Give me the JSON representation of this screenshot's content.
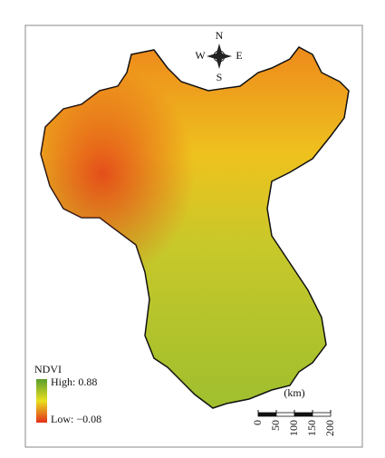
{
  "compass": {
    "north": "N",
    "south": "S",
    "west": "W",
    "east": "E"
  },
  "legend": {
    "title": "NDVI",
    "high_label": "High: 0.88",
    "low_label": "Low: −0.08"
  },
  "scale_bar": {
    "unit": "(km)",
    "ticks": [
      0,
      50,
      100,
      150,
      200
    ]
  }
}
